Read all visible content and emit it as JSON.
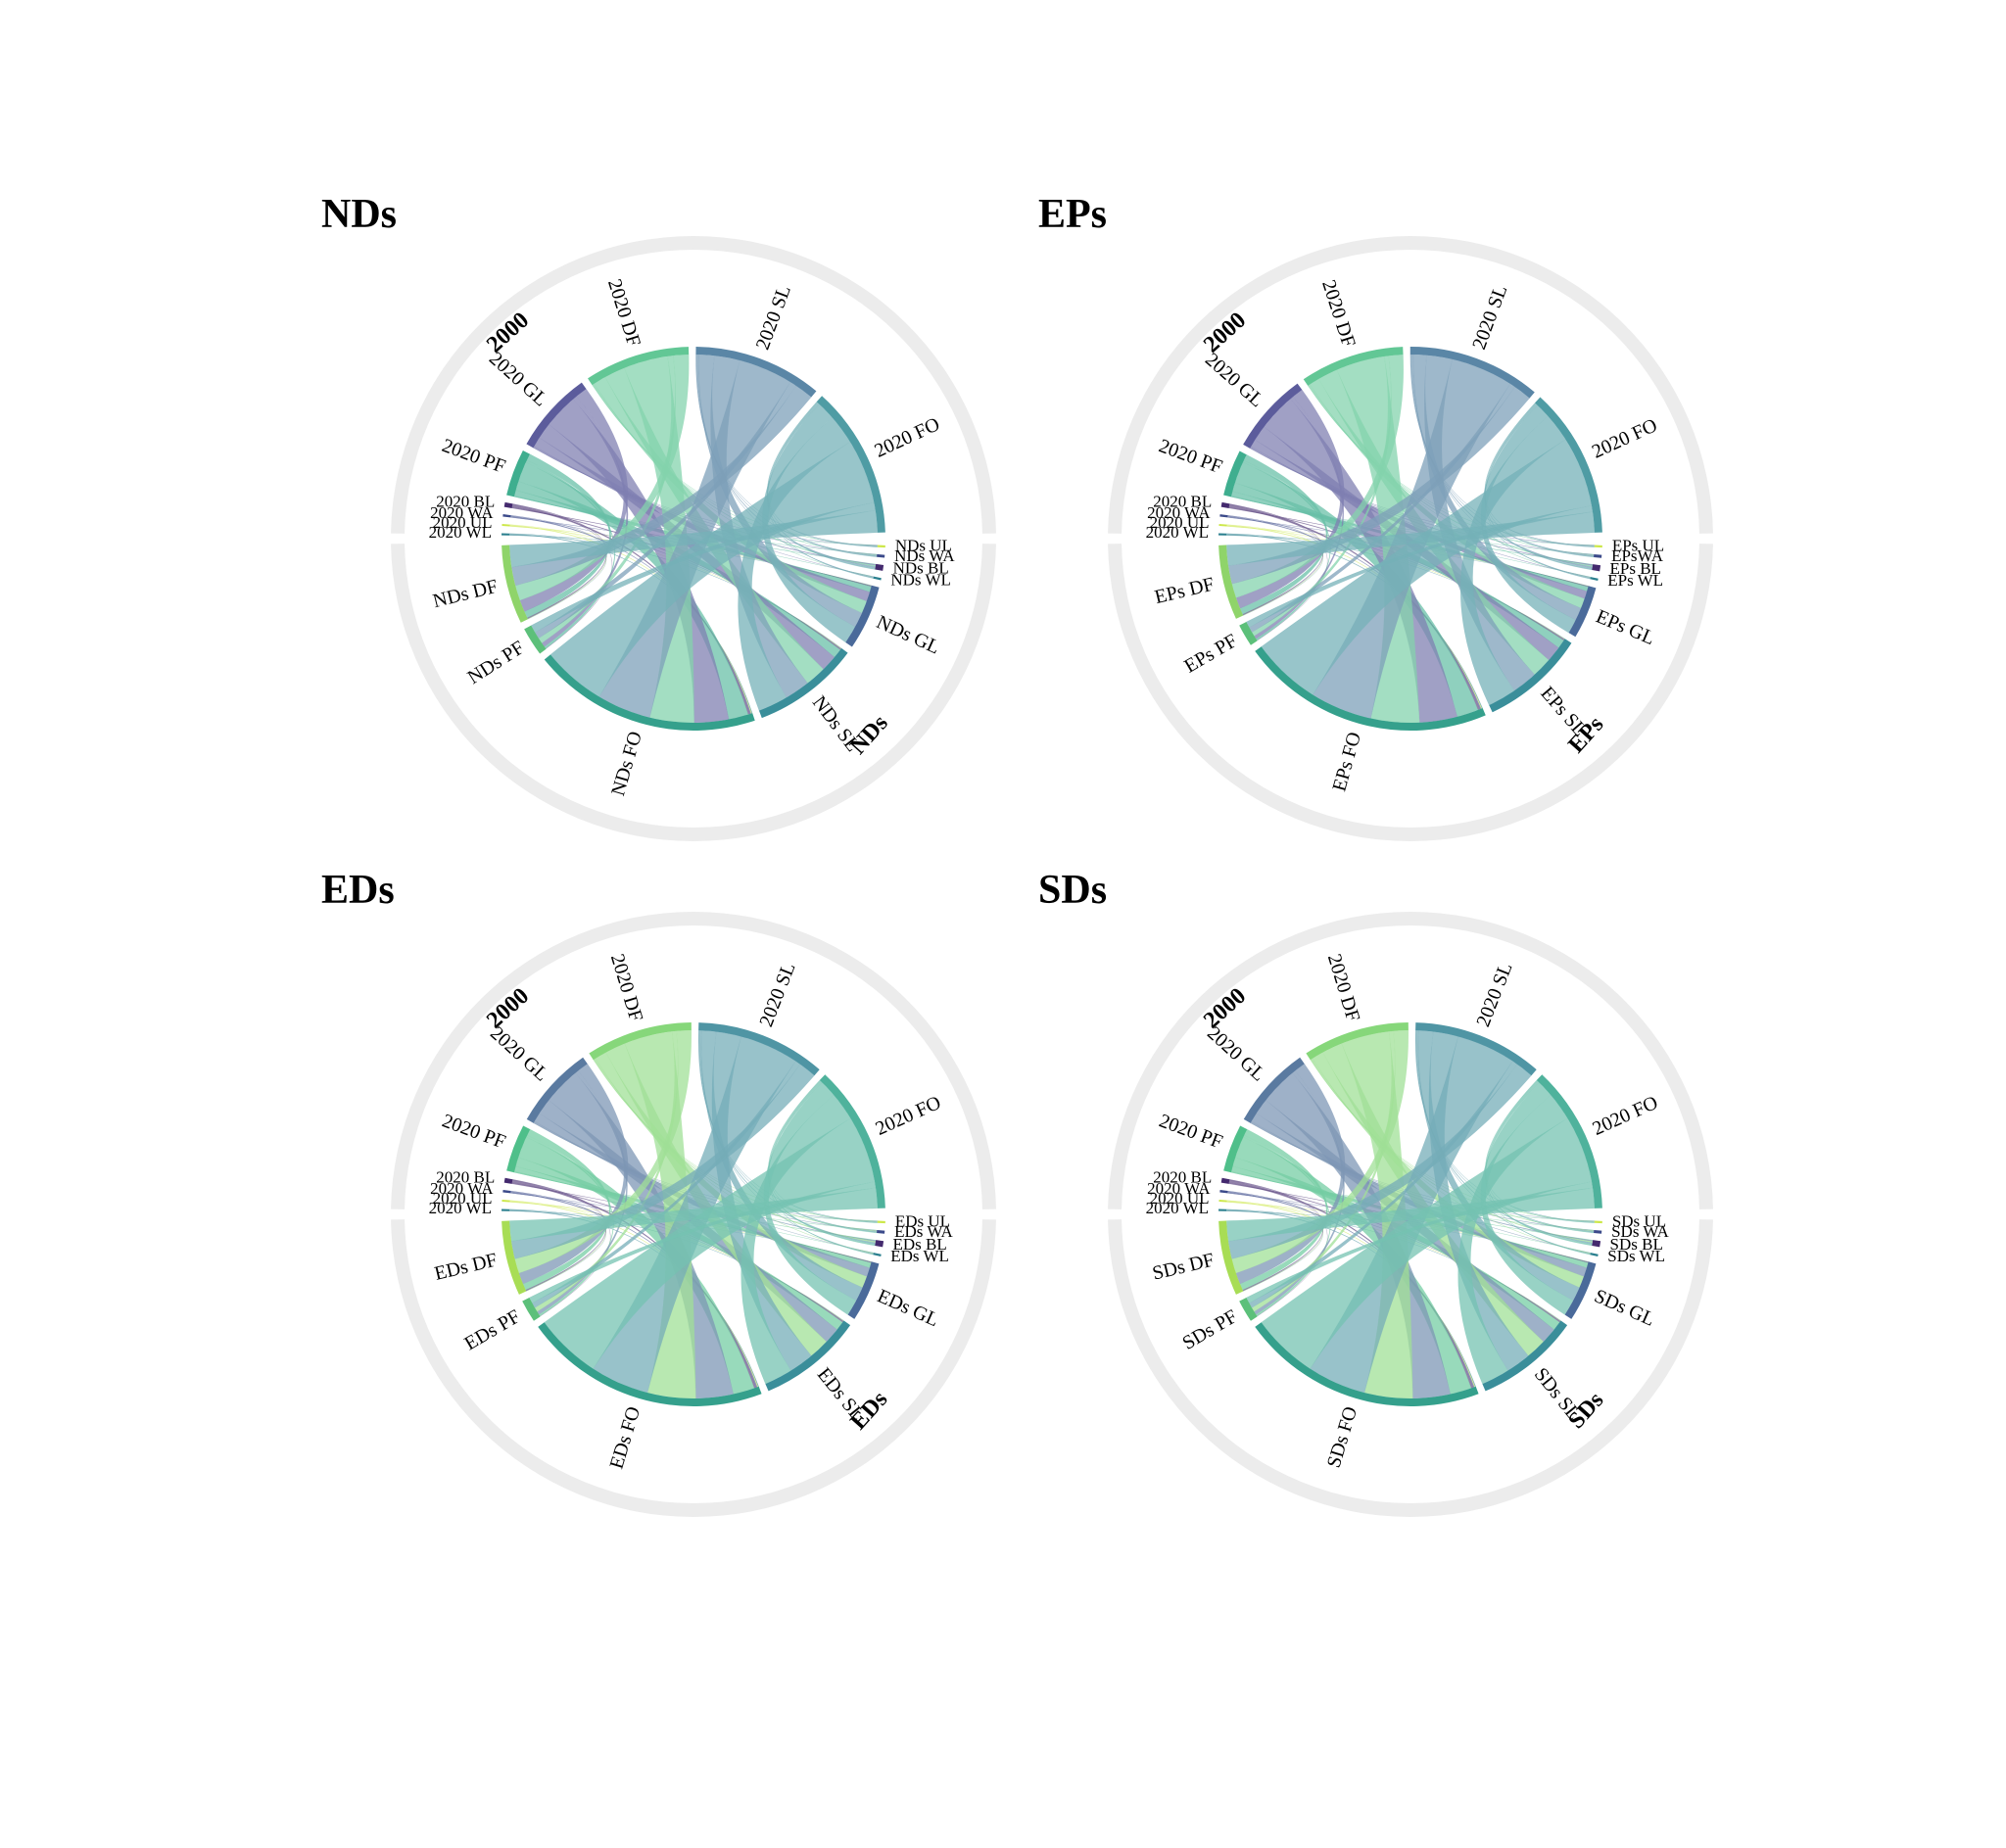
{
  "chart_data": [
    {
      "type": "chord",
      "title": "NDs",
      "groups": {
        "left": "2000",
        "right": "NDs"
      },
      "sources": [
        {
          "label": "2020 FO",
          "value": 26,
          "color": "#4f9ca4"
        },
        {
          "label": "2020 SL",
          "value": 22,
          "color": "#5a86a6"
        },
        {
          "label": "2020 DF",
          "value": 18,
          "color": "#62c795"
        },
        {
          "label": "2020 GL",
          "value": 14,
          "color": "#5c5c9c"
        },
        {
          "label": "2020 PF",
          "value": 8,
          "color": "#3fae8f"
        },
        {
          "label": "2020 BL",
          "value": 0.8,
          "color": "#442a6e"
        },
        {
          "label": "2020 WA",
          "value": 0.4,
          "color": "#3b4a8a"
        },
        {
          "label": "2020 UL",
          "value": 0.3,
          "color": "#cde84a"
        },
        {
          "label": "2020 WL",
          "value": 0.3,
          "color": "#2a7f8e"
        }
      ],
      "targets": [
        {
          "label": "NDs UL",
          "value": 0.3,
          "color": "#cde84a"
        },
        {
          "label": "NDs WA",
          "value": 0.4,
          "color": "#3b4a8a"
        },
        {
          "label": "NDs BL",
          "value": 0.8,
          "color": "#442a6e"
        },
        {
          "label": "NDs WL",
          "value": 0.3,
          "color": "#2a7f8e"
        },
        {
          "label": "NDs GL",
          "value": 9,
          "color": "#4a6a9a"
        },
        {
          "label": "NDs SL",
          "value": 15,
          "color": "#3a8e9a"
        },
        {
          "label": "NDs FO",
          "value": 32,
          "color": "#35a08c"
        },
        {
          "label": "NDs PF",
          "value": 4,
          "color": "#5cc07a"
        },
        {
          "label": "NDs DF",
          "value": 11,
          "color": "#8fd46a"
        }
      ]
    },
    {
      "type": "chord",
      "title": "EPs",
      "groups": {
        "left": "2000",
        "right": "EPs"
      },
      "sources": [
        {
          "label": "2020 FO",
          "value": 26,
          "color": "#4f9ca4"
        },
        {
          "label": "2020 SL",
          "value": 23,
          "color": "#5a86a6"
        },
        {
          "label": "2020 DF",
          "value": 18,
          "color": "#62c795"
        },
        {
          "label": "2020 GL",
          "value": 14,
          "color": "#5c5c9c"
        },
        {
          "label": "2020 PF",
          "value": 8,
          "color": "#3fae8f"
        },
        {
          "label": "2020 BL",
          "value": 0.8,
          "color": "#442a6e"
        },
        {
          "label": "2020 WA",
          "value": 0.4,
          "color": "#3b4a8a"
        },
        {
          "label": "2020 UL",
          "value": 0.3,
          "color": "#cde84a"
        },
        {
          "label": "2020 WL",
          "value": 0.3,
          "color": "#2a7f8e"
        }
      ],
      "targets": [
        {
          "label": "EPs UL",
          "value": 0.3,
          "color": "#cde84a"
        },
        {
          "label": "EPsWA",
          "value": 0.4,
          "color": "#3b4a8a"
        },
        {
          "label": "EPs BL",
          "value": 0.8,
          "color": "#442a6e"
        },
        {
          "label": "EPs WL",
          "value": 0.3,
          "color": "#2a7f8e"
        },
        {
          "label": "EPs GL",
          "value": 7,
          "color": "#4a6a9a"
        },
        {
          "label": "EPs SL",
          "value": 14,
          "color": "#3a8e9a"
        },
        {
          "label": "EPs FO",
          "value": 34,
          "color": "#35a08c"
        },
        {
          "label": "EPs PF",
          "value": 3,
          "color": "#5cc07a"
        },
        {
          "label": "EPs DF",
          "value": 10,
          "color": "#8fd46a"
        }
      ]
    },
    {
      "type": "chord",
      "title": "EDs",
      "groups": {
        "left": "2000",
        "right": "EDs"
      },
      "sources": [
        {
          "label": "2020 FO",
          "value": 25,
          "color": "#4fb29c"
        },
        {
          "label": "2020 SL",
          "value": 22,
          "color": "#4f95a4"
        },
        {
          "label": "2020 DF",
          "value": 18,
          "color": "#86d77a"
        },
        {
          "label": "2020 GL",
          "value": 14,
          "color": "#5a7aa0"
        },
        {
          "label": "2020 PF",
          "value": 8,
          "color": "#4fbf8a"
        },
        {
          "label": "2020 BL",
          "value": 0.8,
          "color": "#442a6e"
        },
        {
          "label": "2020 WA",
          "value": 0.4,
          "color": "#3b4a8a"
        },
        {
          "label": "2020 UL",
          "value": 0.3,
          "color": "#cde84a"
        },
        {
          "label": "2020 WL",
          "value": 0.3,
          "color": "#2a7f8e"
        }
      ],
      "targets": [
        {
          "label": "EDs UL",
          "value": 0.3,
          "color": "#cde84a"
        },
        {
          "label": "EDs WA",
          "value": 0.4,
          "color": "#3b4a8a"
        },
        {
          "label": "EDs BL",
          "value": 0.8,
          "color": "#442a6e"
        },
        {
          "label": "EDs WL",
          "value": 0.3,
          "color": "#2a7f8e"
        },
        {
          "label": "EDs GL",
          "value": 8,
          "color": "#4a6a9a"
        },
        {
          "label": "EDs SL",
          "value": 14,
          "color": "#3a8e9a"
        },
        {
          "label": "EDs FO",
          "value": 33,
          "color": "#35a08c"
        },
        {
          "label": "EDs PF",
          "value": 3,
          "color": "#5cc07a"
        },
        {
          "label": "EDs DF",
          "value": 10,
          "color": "#a8dd55"
        }
      ]
    },
    {
      "type": "chord",
      "title": "SDs",
      "groups": {
        "left": "2000",
        "right": "SDs"
      },
      "sources": [
        {
          "label": "2020 FO",
          "value": 25,
          "color": "#4fb29c"
        },
        {
          "label": "2020 SL",
          "value": 22,
          "color": "#4f95a4"
        },
        {
          "label": "2020 DF",
          "value": 18,
          "color": "#86d77a"
        },
        {
          "label": "2020 GL",
          "value": 14,
          "color": "#5a7aa0"
        },
        {
          "label": "2020 PF",
          "value": 8,
          "color": "#4fbf8a"
        },
        {
          "label": "2020 BL",
          "value": 0.8,
          "color": "#442a6e"
        },
        {
          "label": "2020 WA",
          "value": 0.4,
          "color": "#3b4a8a"
        },
        {
          "label": "2020 UL",
          "value": 0.3,
          "color": "#cde84a"
        },
        {
          "label": "2020 WL",
          "value": 0.3,
          "color": "#2a7f8e"
        }
      ],
      "targets": [
        {
          "label": "SDs UL",
          "value": 0.3,
          "color": "#cde84a"
        },
        {
          "label": "SDs WA",
          "value": 0.4,
          "color": "#3b4a8a"
        },
        {
          "label": "SDs BL",
          "value": 0.8,
          "color": "#442a6e"
        },
        {
          "label": "SDs WL",
          "value": 0.3,
          "color": "#2a7f8e"
        },
        {
          "label": "SDs GL",
          "value": 8,
          "color": "#4a6a9a"
        },
        {
          "label": "SDs SL",
          "value": 14,
          "color": "#3a8e9a"
        },
        {
          "label": "SDs FO",
          "value": 33,
          "color": "#35a08c"
        },
        {
          "label": "SDs PF",
          "value": 3,
          "color": "#5cc07a"
        },
        {
          "label": "SDs DF",
          "value": 10,
          "color": "#a8dd55"
        }
      ]
    }
  ]
}
